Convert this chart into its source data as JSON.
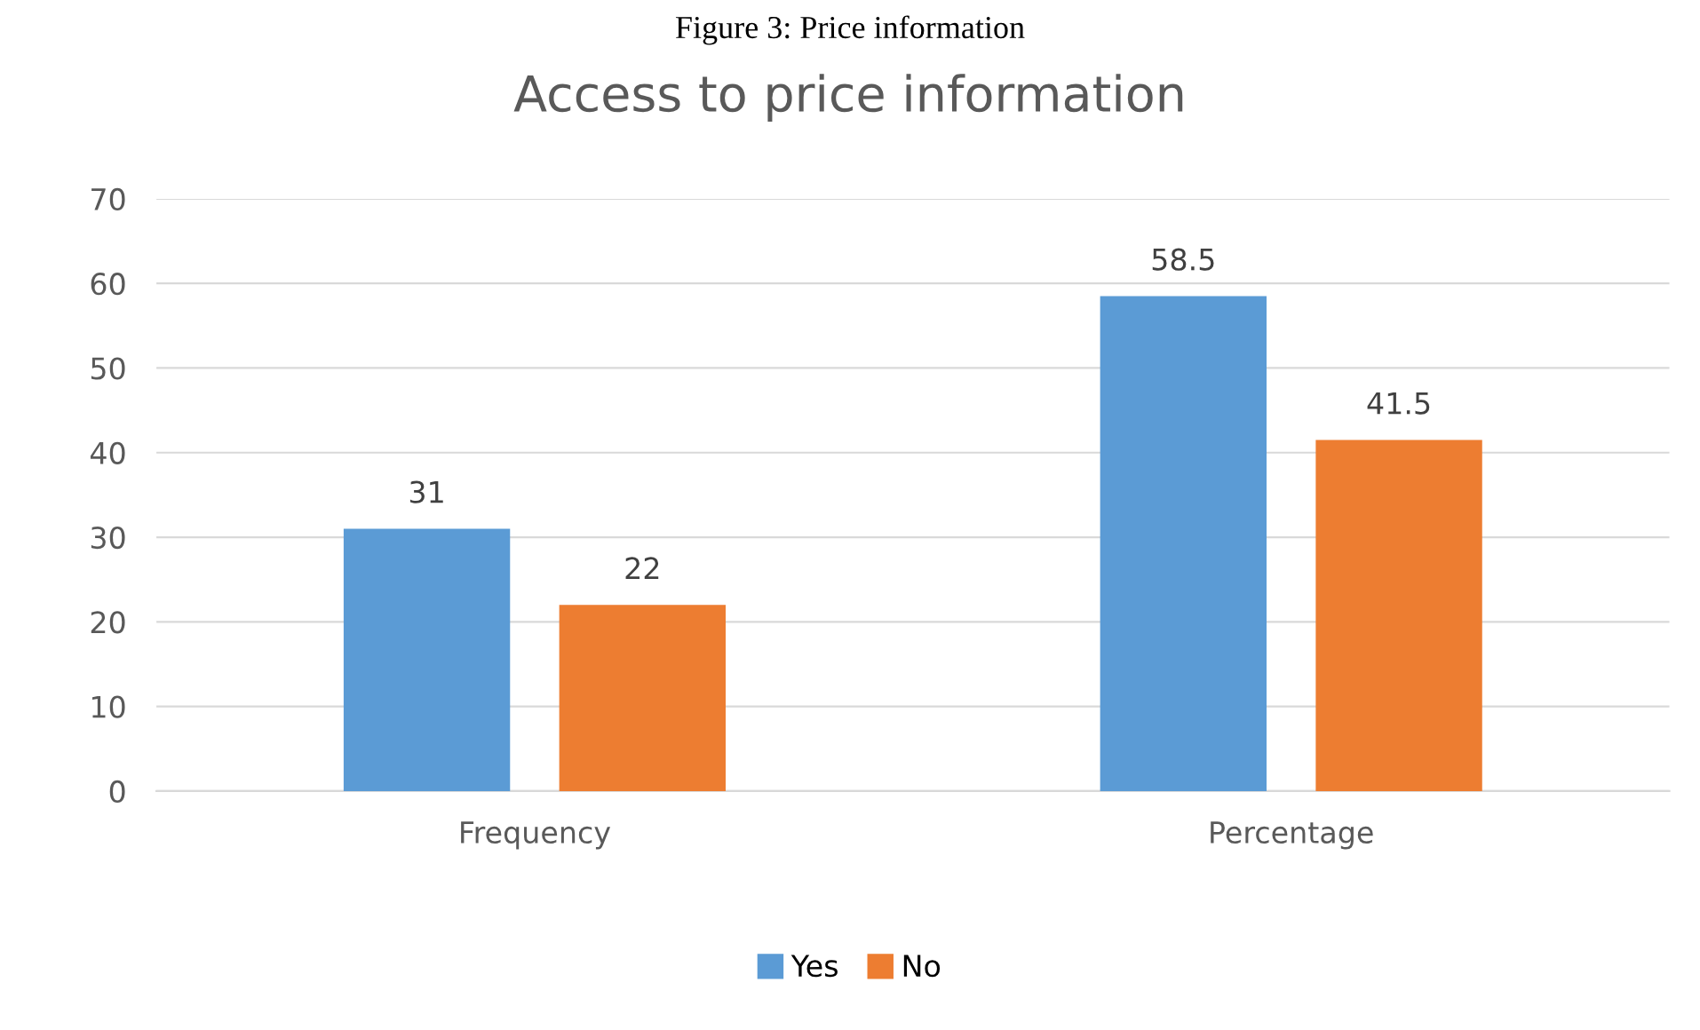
{
  "chart_data": {
    "type": "bar",
    "title": "Access to price information",
    "annotations": [
      "Figure 3: Price information"
    ],
    "categories": [
      "Frequency",
      "Percentage"
    ],
    "series": [
      {
        "name": "Yes",
        "color": "#5b9bd5",
        "values": [
          31,
          58.5
        ]
      },
      {
        "name": "No",
        "color": "#ed7d31",
        "values": [
          22,
          41.5
        ]
      }
    ],
    "ylim": [
      0,
      70
    ],
    "yticks": [
      0,
      10,
      20,
      30,
      40,
      50,
      60,
      70
    ],
    "grid": "y",
    "legend": "bottom",
    "data_labels": true
  }
}
